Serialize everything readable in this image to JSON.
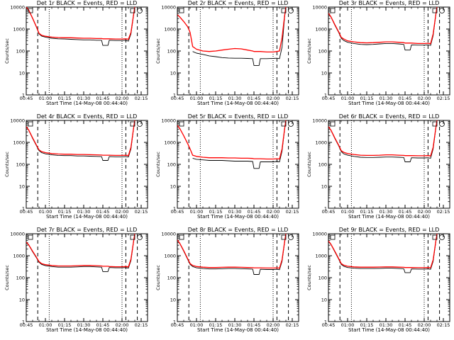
{
  "colors": {
    "events": "#000000",
    "lld": "#ff0000",
    "background": "#ffffff"
  },
  "chart_data": [
    {
      "type": "line",
      "title": "Det 1r BLACK = Events, RED = LLD",
      "xlabel": "Start Time (14-May-08 00:44:40)",
      "ylabel": "Counts/sec",
      "yscale": "log",
      "ylim": [
        1,
        10000
      ],
      "xlim": [
        "00:45",
        "02:20"
      ],
      "x_ticks": [
        "00:45",
        "01:00",
        "01:15",
        "01:30",
        "01:45",
        "02:00",
        "02:15"
      ],
      "y_ticks": [
        "1",
        "10",
        "100",
        "1000",
        "10000"
      ],
      "x": [
        "00:45",
        "00:47",
        "00:50",
        "00:53",
        "00:55",
        "00:57",
        "01:00",
        "01:05",
        "01:10",
        "01:15",
        "01:20",
        "01:25",
        "01:30",
        "01:35",
        "01:40",
        "01:44",
        "01:45",
        "01:49",
        "01:50",
        "01:55",
        "02:00",
        "02:03",
        "02:05",
        "02:07",
        "02:09",
        "02:10"
      ],
      "series": [
        {
          "values": [
            10000,
            7000,
            3000,
            1200,
            600,
            480,
            430,
            380,
            360,
            350,
            340,
            330,
            320,
            320,
            310,
            310,
            180,
            180,
            310,
            300,
            300,
            310,
            280,
            600,
            4000,
            10000
          ]
        },
        {
          "values": [
            10000,
            7200,
            3100,
            1250,
            640,
            520,
            470,
            430,
            410,
            400,
            400,
            390,
            380,
            380,
            370,
            370,
            360,
            360,
            360,
            350,
            350,
            360,
            340,
            700,
            4300,
            10000
          ]
        }
      ],
      "vlines_dashed": [
        "00:54",
        "02:03",
        "02:12"
      ],
      "vlines_dotted": [
        "01:03",
        "02:00"
      ]
    },
    {
      "type": "line",
      "title": "Det 2r BLACK = Events, RED = LLD",
      "xlabel": "Start Time (14-May-08 00:44:40)",
      "ylabel": "Counts/sec",
      "yscale": "log",
      "ylim": [
        1,
        10000
      ],
      "xlim": [
        "00:45",
        "02:20"
      ],
      "x_ticks": [
        "00:45",
        "01:00",
        "01:15",
        "01:30",
        "01:45",
        "02:00",
        "02:15"
      ],
      "y_ticks": [
        "1",
        "10",
        "100",
        "1000",
        "10000"
      ],
      "x": [
        "00:45",
        "00:47",
        "00:50",
        "00:53",
        "00:55",
        "00:57",
        "01:00",
        "01:05",
        "01:10",
        "01:15",
        "01:20",
        "01:25",
        "01:30",
        "01:35",
        "01:40",
        "01:44",
        "01:45",
        "01:49",
        "01:50",
        "01:55",
        "02:00",
        "02:03",
        "02:05",
        "02:07",
        "02:09",
        "02:10"
      ],
      "series": [
        {
          "values": [
            null,
            null,
            null,
            null,
            null,
            95,
            80,
            70,
            60,
            55,
            50,
            48,
            47,
            47,
            46,
            45,
            22,
            22,
            45,
            45,
            46,
            47,
            45,
            150,
            3500,
            10000
          ]
        },
        {
          "values": [
            4500,
            3500,
            2200,
            1300,
            700,
            160,
            120,
            100,
            95,
            100,
            110,
            120,
            130,
            125,
            110,
            100,
            95,
            95,
            95,
            90,
            90,
            95,
            100,
            400,
            4000,
            10000
          ]
        }
      ],
      "vlines_dashed": [
        "00:54",
        "02:03",
        "02:12"
      ],
      "vlines_dotted": [
        "01:03",
        "02:00"
      ]
    },
    {
      "type": "line",
      "title": "Det 3r BLACK = Events, RED = LLD",
      "xlabel": "Start Time (14-May-08 00:44:40)",
      "ylabel": "Counts/sec",
      "yscale": "log",
      "ylim": [
        1,
        10000
      ],
      "xlim": [
        "00:45",
        "02:20"
      ],
      "x_ticks": [
        "00:45",
        "01:00",
        "01:15",
        "01:30",
        "01:45",
        "02:00",
        "02:15"
      ],
      "y_ticks": [
        "1",
        "10",
        "100",
        "1000",
        "10000"
      ],
      "x": [
        "00:45",
        "00:47",
        "00:50",
        "00:53",
        "00:55",
        "00:57",
        "01:00",
        "01:05",
        "01:10",
        "01:15",
        "01:20",
        "01:25",
        "01:30",
        "01:35",
        "01:40",
        "01:44",
        "01:45",
        "01:49",
        "01:50",
        "01:55",
        "02:00",
        "02:03",
        "02:05",
        "02:07",
        "02:09",
        "02:10"
      ],
      "series": [
        {
          "values": [
            5000,
            3500,
            1500,
            700,
            380,
            300,
            250,
            220,
            200,
            195,
            200,
            210,
            220,
            220,
            210,
            200,
            110,
            110,
            190,
            185,
            185,
            190,
            180,
            500,
            4000,
            10000
          ]
        },
        {
          "values": [
            5200,
            3600,
            1600,
            750,
            420,
            350,
            290,
            260,
            240,
            235,
            240,
            250,
            260,
            260,
            250,
            240,
            230,
            230,
            230,
            220,
            220,
            225,
            215,
            600,
            4200,
            10000
          ]
        }
      ],
      "vlines_dashed": [
        "00:54",
        "02:03",
        "02:12"
      ],
      "vlines_dotted": [
        "01:03",
        "02:00"
      ]
    },
    {
      "type": "line",
      "title": "Det 4r BLACK = Events, RED = LLD",
      "xlabel": "Start Time (14-May-08 00:44:40)",
      "ylabel": "Counts/sec",
      "yscale": "log",
      "ylim": [
        1,
        10000
      ],
      "xlim": [
        "00:45",
        "02:20"
      ],
      "x_ticks": [
        "00:45",
        "01:00",
        "01:15",
        "01:30",
        "01:45",
        "02:00",
        "02:15"
      ],
      "y_ticks": [
        "1",
        "10",
        "100",
        "1000",
        "10000"
      ],
      "x": [
        "00:45",
        "00:47",
        "00:50",
        "00:53",
        "00:55",
        "00:57",
        "01:00",
        "01:05",
        "01:10",
        "01:15",
        "01:20",
        "01:25",
        "01:30",
        "01:35",
        "01:40",
        "01:44",
        "01:45",
        "01:49",
        "01:50",
        "01:55",
        "02:00",
        "02:03",
        "02:05",
        "02:07",
        "02:09",
        "02:10"
      ],
      "series": [
        {
          "values": [
            5000,
            3500,
            1500,
            700,
            420,
            340,
            300,
            270,
            255,
            250,
            250,
            240,
            240,
            235,
            230,
            225,
            150,
            150,
            225,
            220,
            220,
            225,
            215,
            500,
            4000,
            10000
          ]
        },
        {
          "values": [
            5200,
            3600,
            1600,
            750,
            460,
            380,
            340,
            310,
            295,
            290,
            290,
            280,
            280,
            275,
            270,
            265,
            260,
            260,
            260,
            255,
            255,
            260,
            250,
            600,
            4300,
            10000
          ]
        }
      ],
      "vlines_dashed": [
        "00:54",
        "02:03",
        "02:12"
      ],
      "vlines_dotted": [
        "01:03",
        "02:00"
      ]
    },
    {
      "type": "line",
      "title": "Det 5r BLACK = Events, RED = LLD",
      "xlabel": "Start Time (14-May-08 00:44:40)",
      "ylabel": "Counts/sec",
      "yscale": "log",
      "ylim": [
        1,
        10000
      ],
      "xlim": [
        "00:45",
        "02:20"
      ],
      "x_ticks": [
        "00:45",
        "01:00",
        "01:15",
        "01:30",
        "01:45",
        "02:00",
        "02:15"
      ],
      "y_ticks": [
        "1",
        "10",
        "100",
        "1000",
        "10000"
      ],
      "x": [
        "00:45",
        "00:47",
        "00:50",
        "00:53",
        "00:55",
        "00:57",
        "01:00",
        "01:05",
        "01:10",
        "01:15",
        "01:20",
        "01:25",
        "01:30",
        "01:35",
        "01:40",
        "01:44",
        "01:45",
        "01:49",
        "01:50",
        "01:55",
        "02:00",
        "02:03",
        "02:05",
        "02:07",
        "02:09",
        "02:10"
      ],
      "series": [
        {
          "values": [
            null,
            null,
            null,
            null,
            null,
            190,
            170,
            160,
            150,
            150,
            150,
            145,
            140,
            140,
            140,
            135,
            65,
            65,
            130,
            130,
            130,
            135,
            130,
            400,
            3800,
            10000
          ]
        },
        {
          "values": [
            6000,
            4200,
            2000,
            900,
            500,
            260,
            230,
            210,
            200,
            200,
            200,
            195,
            195,
            190,
            190,
            185,
            180,
            180,
            180,
            175,
            175,
            180,
            175,
            500,
            4100,
            10000
          ]
        }
      ],
      "vlines_dashed": [
        "00:54",
        "02:03",
        "02:12"
      ],
      "vlines_dotted": [
        "01:03",
        "02:00"
      ]
    },
    {
      "type": "line",
      "title": "Det 6r BLACK = Events, RED = LLD",
      "xlabel": "Start Time (14-May-08 00:44:40)",
      "ylabel": "Counts/sec",
      "yscale": "log",
      "ylim": [
        1,
        10000
      ],
      "xlim": [
        "00:45",
        "02:20"
      ],
      "x_ticks": [
        "00:45",
        "01:00",
        "01:15",
        "01:30",
        "01:45",
        "02:00",
        "02:15"
      ],
      "y_ticks": [
        "1",
        "10",
        "100",
        "1000",
        "10000"
      ],
      "x": [
        "00:45",
        "00:47",
        "00:50",
        "00:53",
        "00:55",
        "00:57",
        "01:00",
        "01:05",
        "01:10",
        "01:15",
        "01:20",
        "01:25",
        "01:30",
        "01:35",
        "01:40",
        "01:44",
        "01:45",
        "01:49",
        "01:50",
        "01:55",
        "02:00",
        "02:03",
        "02:05",
        "02:07",
        "02:09",
        "02:10"
      ],
      "series": [
        {
          "values": [
            5000,
            3500,
            1500,
            700,
            380,
            300,
            260,
            230,
            210,
            205,
            205,
            210,
            215,
            215,
            210,
            205,
            130,
            130,
            200,
            195,
            195,
            200,
            190,
            500,
            3900,
            10000
          ]
        },
        {
          "values": [
            5200,
            3600,
            1600,
            750,
            420,
            350,
            310,
            280,
            260,
            255,
            255,
            260,
            270,
            270,
            260,
            255,
            250,
            250,
            250,
            245,
            245,
            250,
            240,
            600,
            4200,
            10000
          ]
        }
      ],
      "vlines_dashed": [
        "00:54",
        "02:03",
        "02:12"
      ],
      "vlines_dotted": [
        "01:03",
        "02:00"
      ]
    },
    {
      "type": "line",
      "title": "Det 7r BLACK = Events, RED = LLD",
      "xlabel": "Start Time (14-May-08 00:44:40)",
      "ylabel": "Counts/sec",
      "yscale": "log",
      "ylim": [
        1,
        10000
      ],
      "xlim": [
        "00:45",
        "02:20"
      ],
      "x_ticks": [
        "00:45",
        "01:00",
        "01:15",
        "01:30",
        "01:45",
        "02:00",
        "02:15"
      ],
      "y_ticks": [
        "1",
        "10",
        "100",
        "1000",
        "10000"
      ],
      "x": [
        "00:45",
        "00:47",
        "00:50",
        "00:53",
        "00:55",
        "00:57",
        "01:00",
        "01:05",
        "01:10",
        "01:15",
        "01:20",
        "01:25",
        "01:30",
        "01:35",
        "01:40",
        "01:44",
        "01:45",
        "01:49",
        "01:50",
        "01:55",
        "02:00",
        "02:03",
        "02:05",
        "02:07",
        "02:09",
        "02:10"
      ],
      "series": [
        {
          "values": [
            4000,
            3000,
            1500,
            800,
            500,
            400,
            350,
            320,
            300,
            300,
            300,
            310,
            320,
            320,
            310,
            300,
            190,
            190,
            290,
            280,
            280,
            290,
            270,
            600,
            4000,
            10000
          ]
        },
        {
          "values": [
            4200,
            3100,
            1600,
            850,
            540,
            440,
            390,
            360,
            340,
            340,
            340,
            350,
            360,
            360,
            350,
            340,
            330,
            330,
            320,
            315,
            315,
            320,
            310,
            700,
            4300,
            10000
          ]
        }
      ],
      "vlines_dashed": [
        "00:54",
        "02:03",
        "02:12"
      ],
      "vlines_dotted": [
        "01:03",
        "02:00"
      ]
    },
    {
      "type": "line",
      "title": "Det 8r BLACK = Events, RED = LLD",
      "xlabel": "Start Time (14-May-08 00:44:40)",
      "ylabel": "Counts/sec",
      "yscale": "log",
      "ylim": [
        1,
        10000
      ],
      "xlim": [
        "00:45",
        "02:20"
      ],
      "x_ticks": [
        "00:45",
        "01:00",
        "01:15",
        "01:30",
        "01:45",
        "02:00",
        "02:15"
      ],
      "y_ticks": [
        "1",
        "10",
        "100",
        "1000",
        "10000"
      ],
      "x": [
        "00:45",
        "00:47",
        "00:50",
        "00:53",
        "00:55",
        "00:57",
        "01:00",
        "01:05",
        "01:10",
        "01:15",
        "01:20",
        "01:25",
        "01:30",
        "01:35",
        "01:40",
        "01:44",
        "01:45",
        "01:49",
        "01:50",
        "01:55",
        "02:00",
        "02:03",
        "02:05",
        "02:07",
        "02:09",
        "02:10"
      ],
      "series": [
        {
          "values": [
            5000,
            3500,
            1600,
            700,
            400,
            320,
            280,
            260,
            250,
            250,
            255,
            260,
            260,
            255,
            250,
            245,
            140,
            140,
            240,
            235,
            235,
            240,
            230,
            550,
            4000,
            10000
          ]
        },
        {
          "values": [
            5200,
            3600,
            1700,
            750,
            440,
            360,
            320,
            300,
            290,
            290,
            295,
            300,
            300,
            295,
            290,
            285,
            280,
            280,
            280,
            275,
            275,
            280,
            270,
            650,
            4300,
            10000
          ]
        }
      ],
      "vlines_dashed": [
        "00:54",
        "02:03",
        "02:12"
      ],
      "vlines_dotted": [
        "01:03",
        "02:00"
      ]
    },
    {
      "type": "line",
      "title": "Det 9r BLACK = Events, RED = LLD",
      "xlabel": "Start Time (14-May-08 00:44:40)",
      "ylabel": "Counts/sec",
      "yscale": "log",
      "ylim": [
        1,
        10000
      ],
      "xlim": [
        "00:45",
        "02:20"
      ],
      "x_ticks": [
        "00:45",
        "01:00",
        "01:15",
        "01:30",
        "01:45",
        "02:00",
        "02:15"
      ],
      "y_ticks": [
        "1",
        "10",
        "100",
        "1000",
        "10000"
      ],
      "x": [
        "00:45",
        "00:47",
        "00:50",
        "00:53",
        "00:55",
        "00:57",
        "01:00",
        "01:05",
        "01:10",
        "01:15",
        "01:20",
        "01:25",
        "01:30",
        "01:35",
        "01:40",
        "01:44",
        "01:45",
        "01:49",
        "01:50",
        "01:55",
        "02:00",
        "02:03",
        "02:05",
        "02:07",
        "02:09",
        "02:10"
      ],
      "series": [
        {
          "values": [
            4500,
            3200,
            1500,
            700,
            400,
            330,
            290,
            270,
            260,
            260,
            260,
            265,
            270,
            270,
            260,
            255,
            170,
            170,
            250,
            245,
            245,
            250,
            240,
            550,
            3900,
            10000
          ]
        },
        {
          "values": [
            4700,
            3300,
            1600,
            750,
            440,
            370,
            330,
            310,
            300,
            300,
            300,
            305,
            310,
            310,
            300,
            295,
            290,
            290,
            290,
            285,
            285,
            290,
            280,
            650,
            4200,
            10000
          ]
        }
      ],
      "vlines_dashed": [
        "00:54",
        "02:03",
        "02:12"
      ],
      "vlines_dotted": [
        "01:03",
        "02:00"
      ]
    }
  ]
}
